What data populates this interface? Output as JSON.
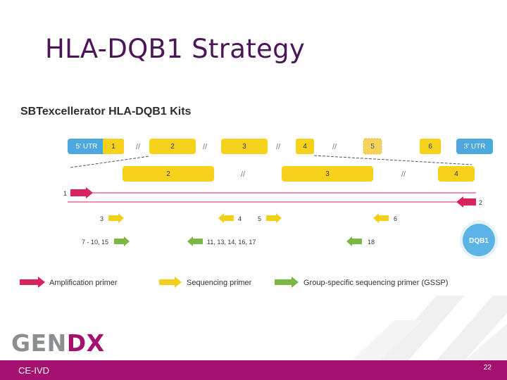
{
  "slide": {
    "title": "HLA-DQB1 Strategy",
    "page_number": "22",
    "footer_label": "CE-IVD",
    "logo": {
      "part1": "GEN",
      "part2": "DX"
    }
  },
  "diagram": {
    "heading": "SBTexcellerator HLA-DQB1 Kits",
    "gene_badge": "DQB1",
    "exons": {
      "utr5": "5' UTR",
      "e1": "1",
      "e2": "2",
      "e3": "3",
      "e4": "4",
      "e5": "5",
      "e6": "6",
      "utr3": "3' UTR"
    },
    "amplicons": {
      "a2": "2",
      "a3": "3",
      "a4": "4"
    },
    "amplification": {
      "forward": "1",
      "reverse": "2"
    },
    "sequencing": {
      "p3": "3",
      "p4": "4",
      "p5": "5",
      "p6": "6"
    },
    "gssp": {
      "left": "7 - 10, 15",
      "middle": "11, 13, 14, 16, 17",
      "right": "18"
    },
    "legend": {
      "amplification": "Amplification primer",
      "sequencing": "Sequencing primer",
      "gssp": "Group-specific sequencing primer (GSSP)"
    },
    "colors": {
      "exon": "#f7d21c",
      "utr": "#4ea8e0",
      "amplification": "#d8245a",
      "sequencing": "#f2d01a",
      "gssp": "#7ab842",
      "badge": "#5cb3e6",
      "brand": "#a3106e",
      "title": "#4a1656"
    }
  }
}
